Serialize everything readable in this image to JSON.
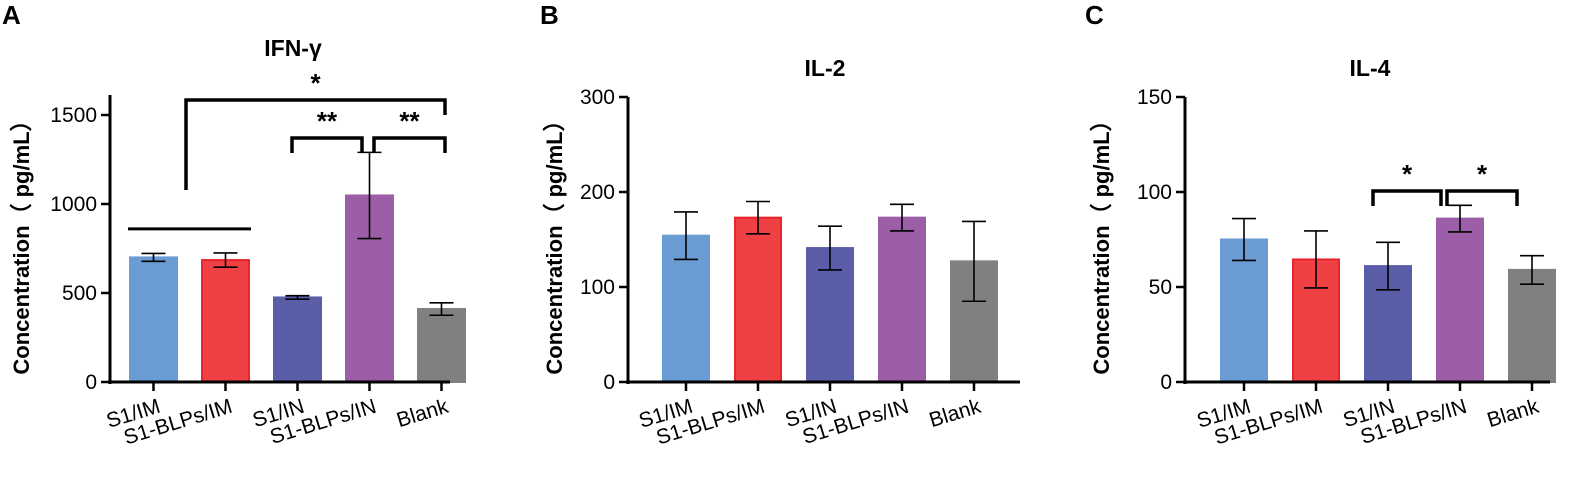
{
  "chart_data": [
    {
      "type": "bar",
      "panel": "A",
      "title": "IFN-γ",
      "xlabel": "",
      "ylabel": "Concentration（ pg/mL）",
      "ylim": [
        0,
        1600
      ],
      "yticks": [
        0,
        500,
        1000,
        1500
      ],
      "categories": [
        "S1/IM",
        "S1-BLPs/IM",
        "S1/IN",
        "S1-BLPs/IN",
        "Blank"
      ],
      "values": [
        700,
        685,
        475,
        1048,
        410
      ],
      "errors": [
        22,
        40,
        10,
        242,
        35
      ],
      "colors": [
        "#6a9bd3",
        "#ef4044",
        "#5a5ea8",
        "#9c5ea7",
        "#808080"
      ],
      "edge_colors": [
        "#6a9bd3",
        "#e8242c",
        "#5a5ea8",
        "#9c5ea7",
        "#808080"
      ],
      "significance": [
        {
          "type": "bar",
          "from": 0,
          "to": 1,
          "label": ""
        },
        {
          "type": "bracket",
          "from": 0.5,
          "to": 4,
          "label": "*"
        },
        {
          "type": "bracket",
          "from": 2,
          "to": 3,
          "label": "**"
        },
        {
          "type": "bracket",
          "from": 3,
          "to": 4,
          "label": "**"
        }
      ]
    },
    {
      "type": "bar",
      "panel": "B",
      "title": "IL-2",
      "xlabel": "",
      "ylabel": "Concentration（ pg/mL）",
      "ylim": [
        0,
        300
      ],
      "yticks": [
        0,
        100,
        200,
        300
      ],
      "categories": [
        "S1/IM",
        "S1-BLPs/IM",
        "S1/IN",
        "S1-BLPs/IN",
        "Blank"
      ],
      "values": [
        154,
        173,
        141,
        173,
        127
      ],
      "errors": [
        25,
        17,
        23,
        14,
        42
      ],
      "colors": [
        "#6a9bd3",
        "#ef4044",
        "#5a5ea8",
        "#9c5ea7",
        "#808080"
      ],
      "edge_colors": [
        "#6a9bd3",
        "#e8242c",
        "#5a5ea8",
        "#9c5ea7",
        "#808080"
      ],
      "significance": []
    },
    {
      "type": "bar",
      "panel": "C",
      "title": "IL-4",
      "xlabel": "",
      "ylabel": "Concentration（ pg/mL）",
      "ylim": [
        0,
        150
      ],
      "yticks": [
        0,
        50,
        100,
        150
      ],
      "categories": [
        "S1/IM",
        "S1-BLPs/IM",
        "S1/IN",
        "S1-BLPs/IN",
        "Blank"
      ],
      "values": [
        75,
        64.5,
        61,
        86,
        59
      ],
      "errors": [
        11,
        15,
        12.5,
        7,
        7.5
      ],
      "colors": [
        "#6a9bd3",
        "#ef4044",
        "#5a5ea8",
        "#9c5ea7",
        "#808080"
      ],
      "edge_colors": [
        "#6a9bd3",
        "#e8242c",
        "#5a5ea8",
        "#9c5ea7",
        "#808080"
      ],
      "significance": [
        {
          "type": "bracket",
          "from": 2,
          "to": 3,
          "label": "*"
        },
        {
          "type": "bracket",
          "from": 3,
          "to": 4,
          "label": "*"
        }
      ]
    }
  ]
}
